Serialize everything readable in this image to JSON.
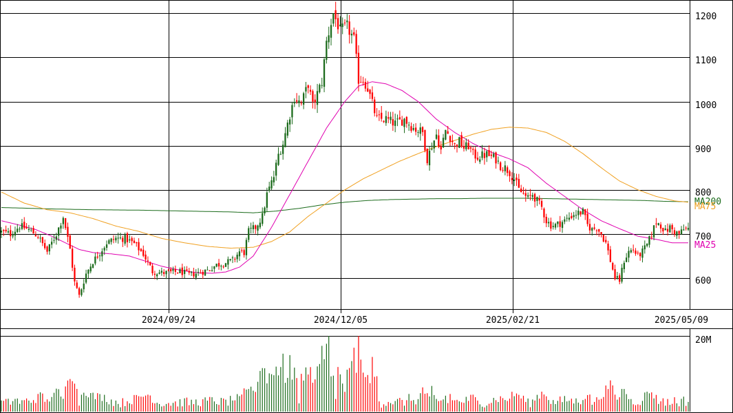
{
  "chart_data": {
    "type": "candlestick",
    "colors": {
      "up": "#1c6b1c",
      "down": "#ff0000",
      "ma25": "#e000b0",
      "ma75": "#f0a020",
      "ma200": "#1a6a1a",
      "grid": "#000000",
      "background": "#ffffff"
    },
    "price_axis": {
      "min": 530,
      "max": 1230,
      "ticks": [
        "600",
        "700",
        "800",
        "900",
        "1000",
        "1100",
        "1200"
      ]
    },
    "volume_axis": {
      "max": 20,
      "ticks": [
        "20M"
      ]
    },
    "date_labels": [
      "2024/09/24",
      "2024/12/05",
      "2025/02/21",
      "2025/05/09"
    ],
    "legend": [
      "MA200",
      "MA75",
      "MA25"
    ],
    "ohlc_knots": [
      [
        0,
        705
      ],
      [
        4,
        700
      ],
      [
        8,
        718
      ],
      [
        12,
        710
      ],
      [
        16,
        695
      ],
      [
        20,
        660
      ],
      [
        24,
        700
      ],
      [
        27,
        740
      ],
      [
        30,
        665
      ],
      [
        32,
        590
      ],
      [
        34,
        560
      ],
      [
        37,
        610
      ],
      [
        40,
        638
      ],
      [
        43,
        658
      ],
      [
        46,
        680
      ],
      [
        50,
        690
      ],
      [
        54,
        690
      ],
      [
        58,
        678
      ],
      [
        62,
        655
      ],
      [
        66,
        615
      ],
      [
        70,
        612
      ],
      [
        74,
        613
      ],
      [
        78,
        615
      ],
      [
        82,
        608
      ],
      [
        86,
        612
      ],
      [
        90,
        618
      ],
      [
        94,
        630
      ],
      [
        98,
        635
      ],
      [
        101,
        640
      ],
      [
        104,
        660
      ],
      [
        106,
        658
      ],
      [
        108,
        705
      ],
      [
        111,
        715
      ],
      [
        114,
        740
      ],
      [
        116,
        790
      ],
      [
        119,
        830
      ],
      [
        121,
        880
      ],
      [
        123,
        905
      ],
      [
        125,
        950
      ],
      [
        128,
        1010
      ],
      [
        131,
        995
      ],
      [
        134,
        1040
      ],
      [
        136,
        990
      ],
      [
        140,
        1045
      ],
      [
        142,
        1135
      ],
      [
        145,
        1200
      ],
      [
        148,
        1160
      ],
      [
        151,
        1170
      ],
      [
        154,
        1140
      ],
      [
        156,
        1050
      ],
      [
        158,
        1050
      ],
      [
        160,
        1030
      ],
      [
        162,
        995
      ],
      [
        164,
        960
      ],
      [
        168,
        960
      ],
      [
        172,
        950
      ],
      [
        176,
        960
      ],
      [
        180,
        940
      ],
      [
        184,
        930
      ],
      [
        186,
        870
      ],
      [
        188,
        900
      ],
      [
        190,
        925
      ],
      [
        192,
        890
      ],
      [
        194,
        935
      ],
      [
        196,
        920
      ],
      [
        198,
        900
      ],
      [
        200,
        910
      ],
      [
        202,
        895
      ],
      [
        204,
        900
      ],
      [
        206,
        880
      ],
      [
        208,
        875
      ],
      [
        212,
        880
      ],
      [
        216,
        870
      ],
      [
        218,
        855
      ],
      [
        220,
        850
      ],
      [
        222,
        840
      ],
      [
        224,
        825
      ],
      [
        226,
        800
      ],
      [
        228,
        790
      ],
      [
        230,
        780
      ],
      [
        232,
        790
      ],
      [
        234,
        775
      ],
      [
        236,
        760
      ],
      [
        238,
        730
      ],
      [
        240,
        720
      ],
      [
        242,
        720
      ],
      [
        246,
        730
      ],
      [
        250,
        745
      ],
      [
        254,
        750
      ],
      [
        256,
        720
      ],
      [
        258,
        710
      ],
      [
        260,
        715
      ],
      [
        262,
        700
      ],
      [
        264,
        680
      ],
      [
        266,
        640
      ],
      [
        268,
        600
      ],
      [
        270,
        595
      ],
      [
        272,
        640
      ],
      [
        274,
        660
      ],
      [
        276,
        665
      ],
      [
        278,
        650
      ],
      [
        280,
        660
      ],
      [
        282,
        675
      ],
      [
        284,
        700
      ],
      [
        286,
        728
      ],
      [
        288,
        720
      ],
      [
        290,
        705
      ],
      [
        292,
        715
      ],
      [
        294,
        705
      ],
      [
        296,
        700
      ],
      [
        298,
        710
      ],
      [
        300,
        712
      ]
    ],
    "ma25_knots": [
      [
        0,
        730
      ],
      [
        8,
        720
      ],
      [
        15,
        710
      ],
      [
        22,
        695
      ],
      [
        28,
        680
      ],
      [
        34,
        665
      ],
      [
        40,
        658
      ],
      [
        48,
        655
      ],
      [
        56,
        650
      ],
      [
        62,
        640
      ],
      [
        70,
        627
      ],
      [
        78,
        618
      ],
      [
        86,
        612
      ],
      [
        92,
        611
      ],
      [
        98,
        614
      ],
      [
        104,
        625
      ],
      [
        110,
        650
      ],
      [
        118,
        715
      ],
      [
        126,
        790
      ],
      [
        134,
        865
      ],
      [
        142,
        940
      ],
      [
        150,
        1000
      ],
      [
        156,
        1035
      ],
      [
        162,
        1045
      ],
      [
        168,
        1040
      ],
      [
        175,
        1025
      ],
      [
        182,
        1000
      ],
      [
        190,
        960
      ],
      [
        198,
        930
      ],
      [
        206,
        905
      ],
      [
        214,
        885
      ],
      [
        222,
        870
      ],
      [
        230,
        850
      ],
      [
        238,
        815
      ],
      [
        246,
        785
      ],
      [
        254,
        755
      ],
      [
        262,
        730
      ],
      [
        270,
        712
      ],
      [
        278,
        695
      ],
      [
        286,
        688
      ],
      [
        293,
        680
      ],
      [
        300,
        680
      ]
    ],
    "ma75_knots": [
      [
        0,
        795
      ],
      [
        10,
        770
      ],
      [
        20,
        755
      ],
      [
        30,
        748
      ],
      [
        40,
        735
      ],
      [
        50,
        718
      ],
      [
        60,
        706
      ],
      [
        70,
        690
      ],
      [
        80,
        680
      ],
      [
        90,
        672
      ],
      [
        100,
        668
      ],
      [
        110,
        670
      ],
      [
        118,
        683
      ],
      [
        126,
        705
      ],
      [
        134,
        740
      ],
      [
        142,
        770
      ],
      [
        150,
        800
      ],
      [
        158,
        825
      ],
      [
        166,
        845
      ],
      [
        174,
        865
      ],
      [
        182,
        882
      ],
      [
        190,
        898
      ],
      [
        198,
        912
      ],
      [
        206,
        926
      ],
      [
        214,
        937
      ],
      [
        222,
        942
      ],
      [
        230,
        940
      ],
      [
        238,
        930
      ],
      [
        246,
        910
      ],
      [
        254,
        882
      ],
      [
        262,
        850
      ],
      [
        270,
        820
      ],
      [
        278,
        800
      ],
      [
        286,
        785
      ],
      [
        294,
        775
      ],
      [
        300,
        772
      ]
    ],
    "ma200_knots": [
      [
        0,
        760
      ],
      [
        20,
        757
      ],
      [
        40,
        755
      ],
      [
        60,
        754
      ],
      [
        80,
        752
      ],
      [
        100,
        750
      ],
      [
        110,
        748
      ],
      [
        120,
        752
      ],
      [
        130,
        758
      ],
      [
        140,
        766
      ],
      [
        150,
        772
      ],
      [
        160,
        776
      ],
      [
        170,
        778
      ],
      [
        180,
        779
      ],
      [
        190,
        780
      ],
      [
        200,
        780
      ],
      [
        210,
        781
      ],
      [
        220,
        781
      ],
      [
        230,
        781
      ],
      [
        240,
        780
      ],
      [
        250,
        779
      ],
      [
        260,
        778
      ],
      [
        270,
        777
      ],
      [
        280,
        776
      ],
      [
        290,
        774
      ],
      [
        300,
        773
      ]
    ]
  }
}
